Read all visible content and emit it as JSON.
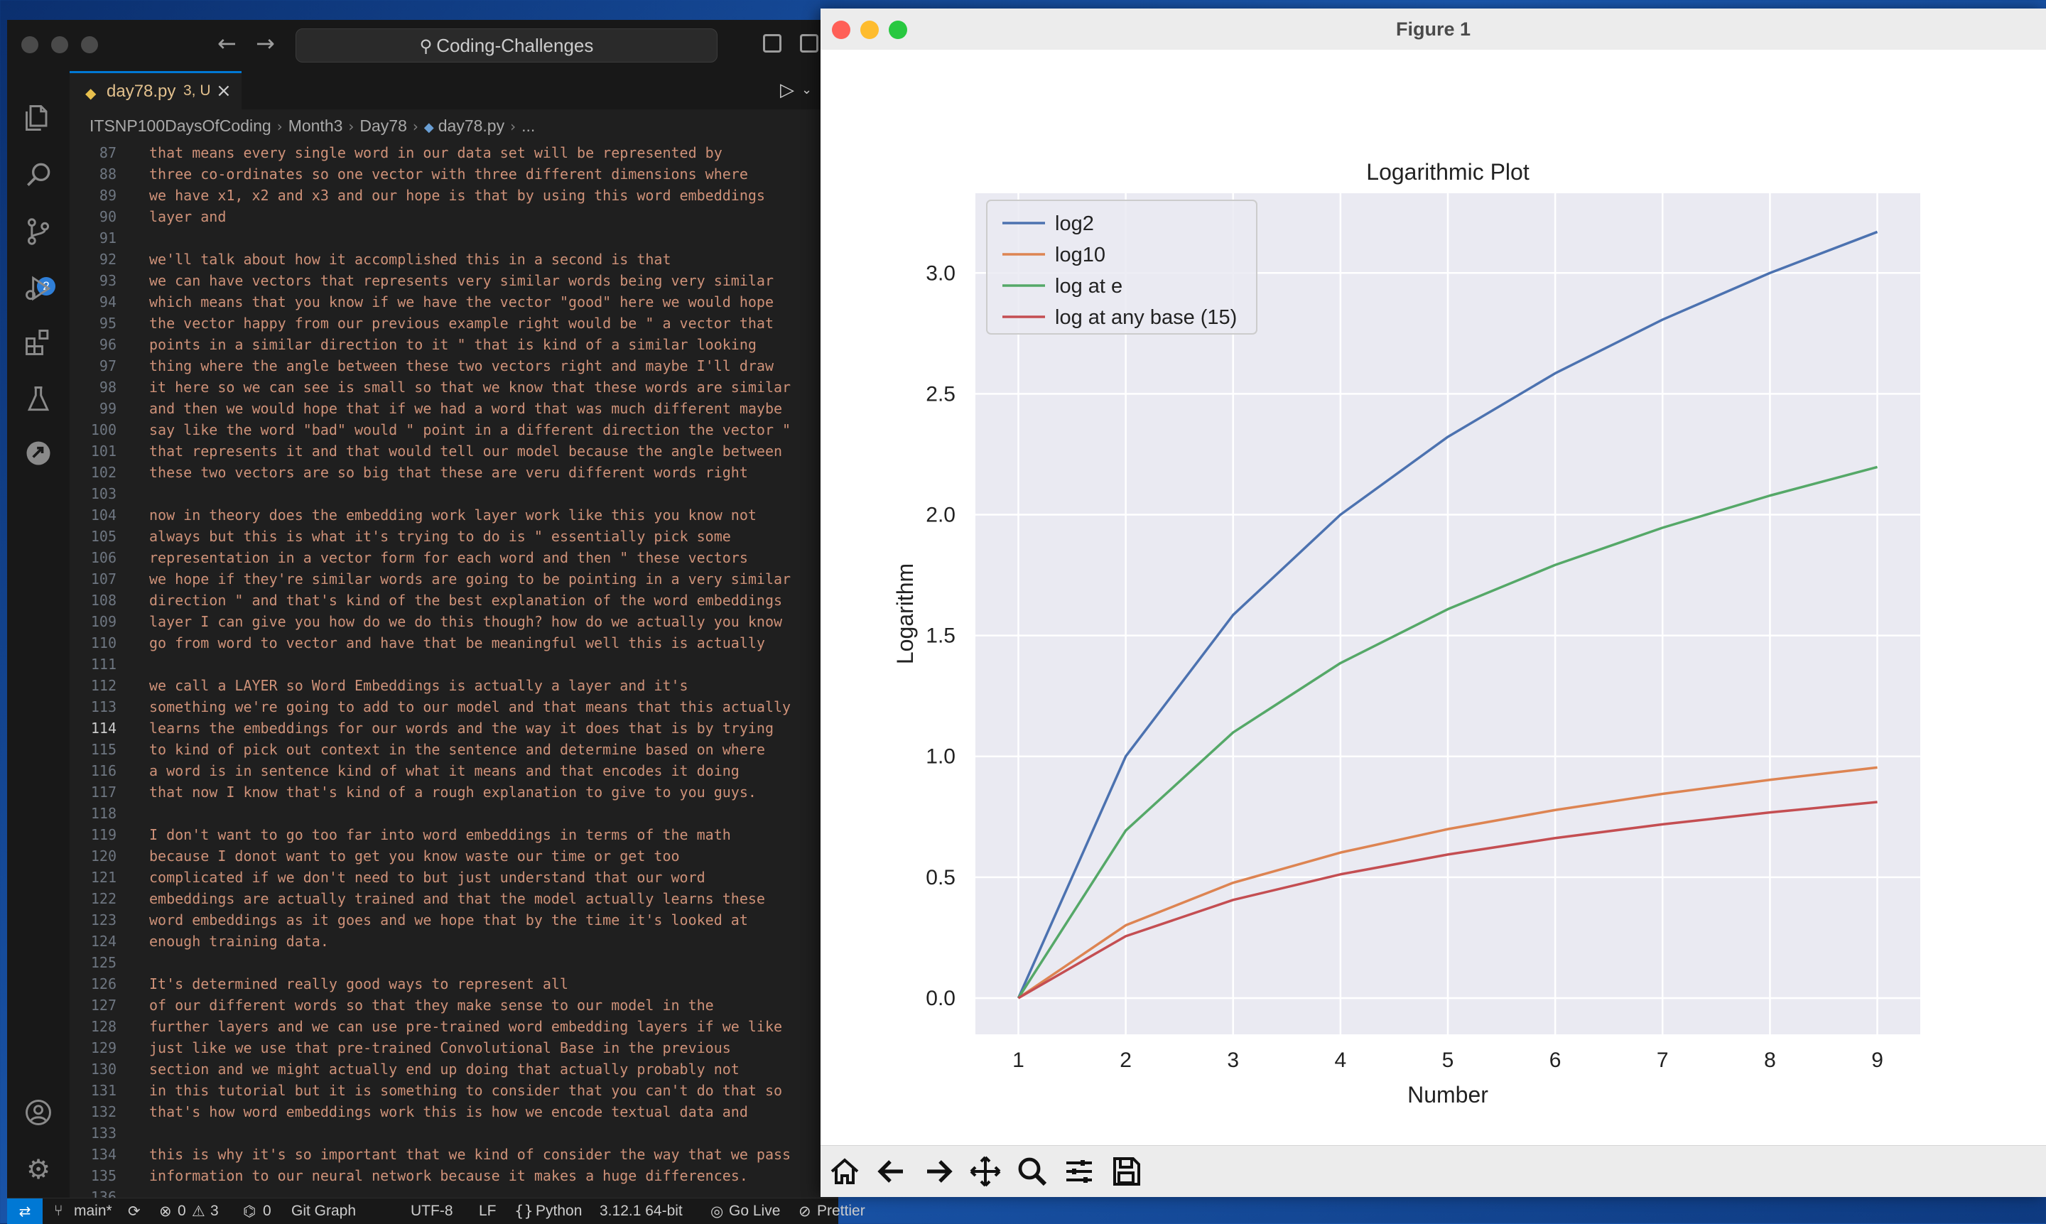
{
  "vscode": {
    "command_center": "Coding-Challenges",
    "tab": {
      "name": "day78.py",
      "status": "3, U"
    },
    "breadcrumb": [
      "ITSNP100DaysOfCoding",
      "Month3",
      "Day78",
      "day78.py",
      "..."
    ],
    "scm_badge": "2",
    "current_line": 114,
    "code_lines": [
      {
        "n": 87,
        "t": "that means every single word in our data set will be represented by"
      },
      {
        "n": 88,
        "t": "three co-ordinates so one vector with three different dimensions where"
      },
      {
        "n": 89,
        "t": "we have x1, x2 and x3 and our hope is that by using this word embeddings"
      },
      {
        "n": 90,
        "t": "layer and"
      },
      {
        "n": 91,
        "t": ""
      },
      {
        "n": 92,
        "t": "we'll talk about how it accomplished this in a second is that"
      },
      {
        "n": 93,
        "t": "we can have vectors that represents very similar words being very similar"
      },
      {
        "n": 94,
        "t": "which means that you know if we have the vector \"good\" here we would hope"
      },
      {
        "n": 95,
        "t": "the vector happy from our previous example right would be \" a vector that"
      },
      {
        "n": 96,
        "t": "points in a similar direction to it \" that is kind of a similar looking"
      },
      {
        "n": 97,
        "t": "thing where the angle between these two vectors right and maybe I'll draw"
      },
      {
        "n": 98,
        "t": "it here so we can see is small so that we know that these words are similar"
      },
      {
        "n": 99,
        "t": "and then we would hope that if we had a word that was much different maybe"
      },
      {
        "n": 100,
        "t": "say like the word \"bad\" would \" point in a different direction the vector \""
      },
      {
        "n": 101,
        "t": "that represents it and that would tell our model because the angle between"
      },
      {
        "n": 102,
        "t": "these two vectors are so big that these are veru different words right"
      },
      {
        "n": 103,
        "t": ""
      },
      {
        "n": 104,
        "t": "now in theory does the embedding work layer work like this you know not"
      },
      {
        "n": 105,
        "t": "always but this is what it's trying to do is \" essentially pick some"
      },
      {
        "n": 106,
        "t": "representation in a vector form for each word and then \" these vectors"
      },
      {
        "n": 107,
        "t": "we hope if they're similar words are going to be pointing in a very similar"
      },
      {
        "n": 108,
        "t": "direction \" and that's kind of the best explanation of the word embeddings"
      },
      {
        "n": 109,
        "t": "layer I can give you how do we do this though? how do we actually you know"
      },
      {
        "n": 110,
        "t": "go from word to vector and have that be meaningful well this is actually"
      },
      {
        "n": 111,
        "t": ""
      },
      {
        "n": 112,
        "t": "we call a LAYER so Word Embeddings is actually a layer and it's"
      },
      {
        "n": 113,
        "t": "something we're going to add to our model and that means that this actually"
      },
      {
        "n": 114,
        "t": "learns the embeddings for our words and the way it does that is by trying"
      },
      {
        "n": 115,
        "t": "to kind of pick out context in the sentence and determine based on where"
      },
      {
        "n": 116,
        "t": "a word is in sentence kind of what it means and that encodes it doing"
      },
      {
        "n": 117,
        "t": "that now I know that's kind of a rough explanation to give to you guys."
      },
      {
        "n": 118,
        "t": ""
      },
      {
        "n": 119,
        "t": "I don't want to go too far into word embeddings in terms of the math"
      },
      {
        "n": 120,
        "t": "because I donot want to get you know waste our time or get too"
      },
      {
        "n": 121,
        "t": "complicated if we don't need to but just understand that our word"
      },
      {
        "n": 122,
        "t": "embeddings are actually trained and that the model actually learns these"
      },
      {
        "n": 123,
        "t": "word embeddings as it goes and we hope that by the time it's looked at"
      },
      {
        "n": 124,
        "t": "enough training data."
      },
      {
        "n": 125,
        "t": ""
      },
      {
        "n": 126,
        "t": "It's determined really good ways to represent all"
      },
      {
        "n": 127,
        "t": "of our different words so that they make sense to our model in the"
      },
      {
        "n": 128,
        "t": "further layers and we can use pre-trained word embedding layers if we like"
      },
      {
        "n": 129,
        "t": "just like we use that pre-trained Convolutional Base in the previous"
      },
      {
        "n": 130,
        "t": "section and we might actually end up doing that actually probably not"
      },
      {
        "n": 131,
        "t": "in this tutorial but it is something to consider that you can't do that so"
      },
      {
        "n": 132,
        "t": "that's how word embeddings work this is how we encode textual data and"
      },
      {
        "n": 133,
        "t": ""
      },
      {
        "n": 134,
        "t": "this is why it's so important that we kind of consider the way that we pass"
      },
      {
        "n": 135,
        "t": "information to our neural network because it makes a huge differences."
      },
      {
        "n": 136,
        "t": ""
      }
    ],
    "statusbar": {
      "branch": "main*",
      "errors": "0",
      "warnings": "3",
      "ports": "0",
      "git_graph": "Git Graph",
      "encoding": "UTF-8",
      "eol": "LF",
      "language": "Python",
      "interpreter": "3.12.1 64-bit",
      "go_live": "Go Live",
      "prettier": "Prettier"
    }
  },
  "figure_window": {
    "title": "Figure 1"
  },
  "chart_data": {
    "type": "line",
    "title": "Logarithmic Plot",
    "xlabel": "Number",
    "ylabel": "Logarithm",
    "x": [
      1,
      2,
      3,
      4,
      5,
      6,
      7,
      8,
      9
    ],
    "xlim": [
      0.6,
      9.4
    ],
    "ylim": [
      -0.15,
      3.33
    ],
    "xticks": [
      "1",
      "2",
      "3",
      "4",
      "5",
      "6",
      "7",
      "8",
      "9"
    ],
    "yticks": [
      "0.0",
      "0.5",
      "1.0",
      "1.5",
      "2.0",
      "2.5",
      "3.0"
    ],
    "grid": true,
    "legend_position": "top-left",
    "series": [
      {
        "name": "log2",
        "color": "#4c72b0",
        "values": [
          0,
          1.0,
          1.585,
          2.0,
          2.322,
          2.585,
          2.807,
          3.0,
          3.17
        ]
      },
      {
        "name": "log10",
        "color": "#dd8452",
        "values": [
          0,
          0.301,
          0.477,
          0.602,
          0.699,
          0.778,
          0.845,
          0.903,
          0.954
        ]
      },
      {
        "name": "log at e",
        "color": "#55a868",
        "values": [
          0,
          0.693,
          1.099,
          1.386,
          1.609,
          1.792,
          1.946,
          2.079,
          2.197
        ]
      },
      {
        "name": "log at any base (15)",
        "color": "#c44e52",
        "values": [
          0,
          0.256,
          0.406,
          0.512,
          0.594,
          0.662,
          0.719,
          0.768,
          0.811
        ]
      }
    ]
  }
}
